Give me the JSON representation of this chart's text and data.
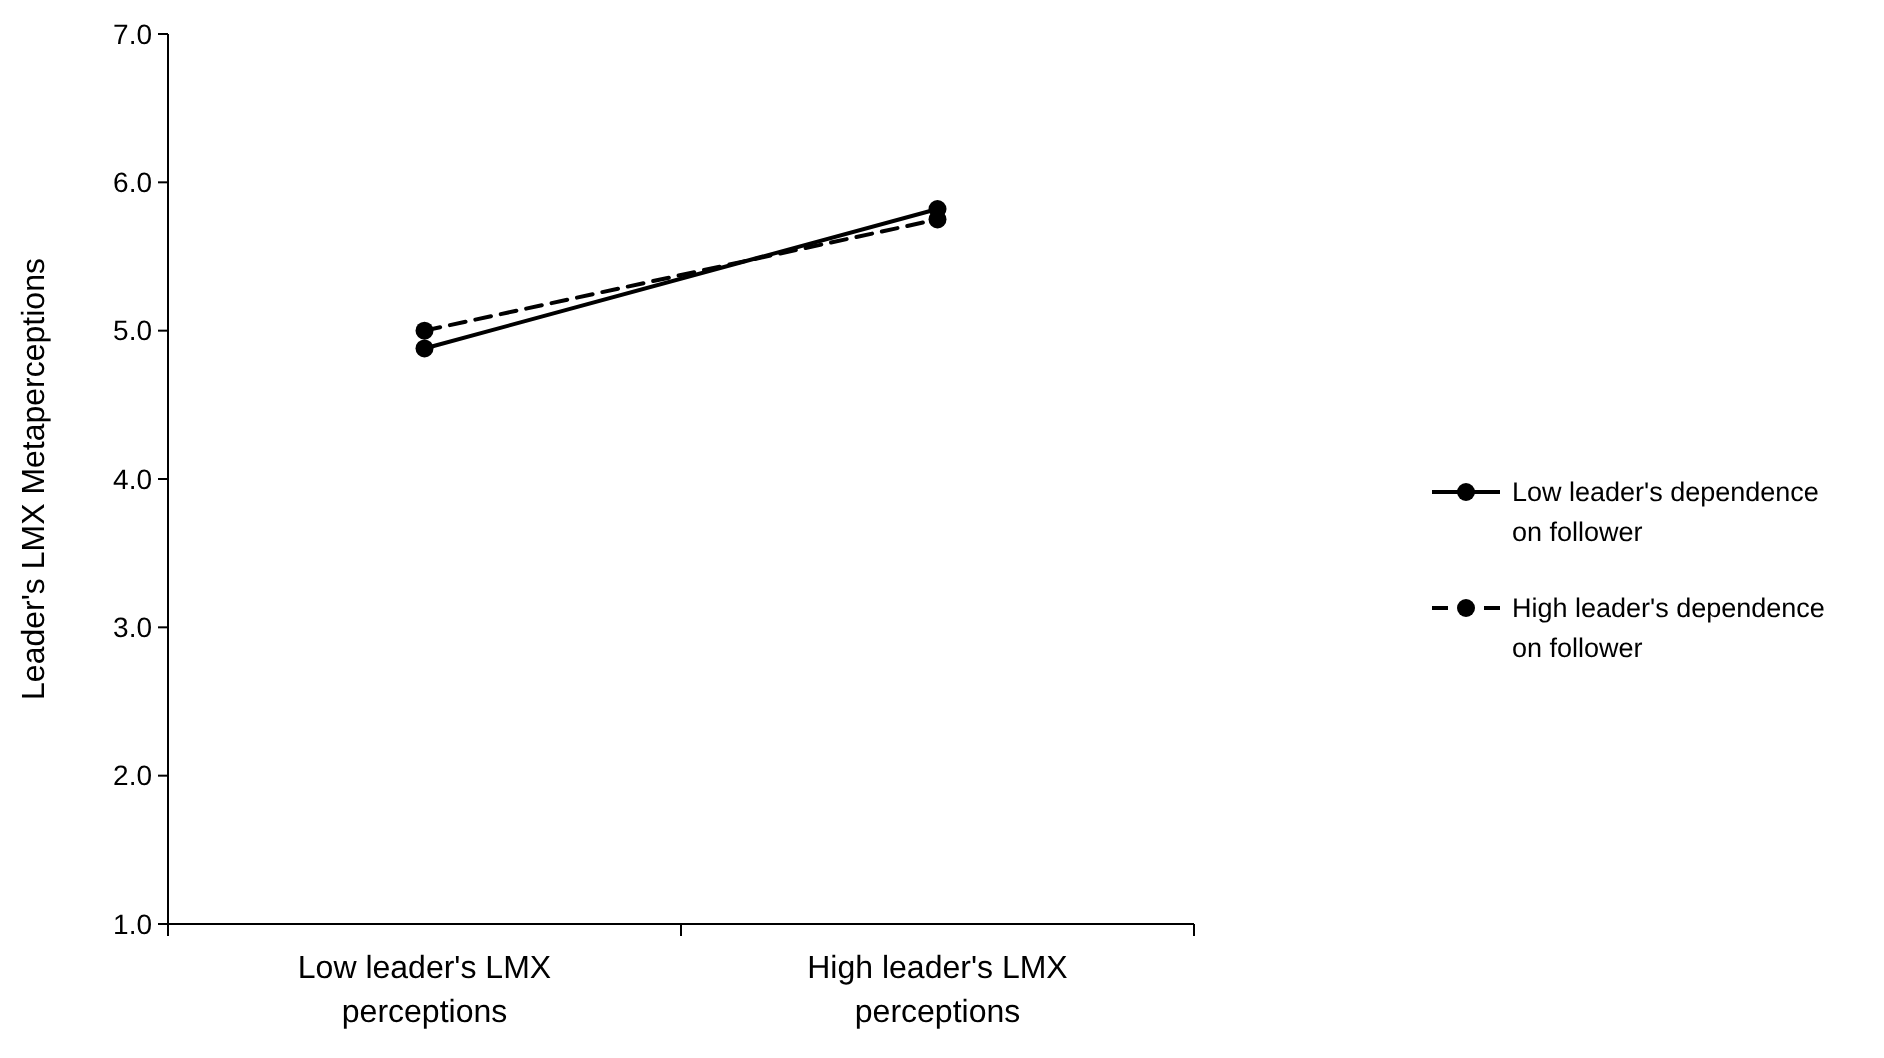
{
  "chart_data": {
    "type": "line",
    "ylabel": "Leader's LMX Metaperceptions",
    "categories": [
      "Low leader's LMX perceptions",
      "High leader's LMX perceptions"
    ],
    "series": [
      {
        "name": "Low leader's dependence on follower",
        "color": "#000000",
        "values": [
          4.88,
          5.82
        ],
        "line_style": "solid"
      },
      {
        "name": "High leader's dependence on follower",
        "color": "#000000",
        "values": [
          5.0,
          5.75
        ],
        "line_style": "dashed"
      }
    ],
    "ylim": [
      1,
      7
    ],
    "yticks": [
      {
        "value": 1,
        "label": "1.0"
      },
      {
        "value": 2,
        "label": "2.0"
      },
      {
        "value": 3,
        "label": "3.0"
      },
      {
        "value": 4,
        "label": "4.0"
      },
      {
        "value": 5,
        "label": "5.0"
      },
      {
        "value": 6,
        "label": "6.0"
      },
      {
        "value": 7,
        "label": "7.0"
      }
    ],
    "marker": "circle",
    "legend": "right"
  }
}
